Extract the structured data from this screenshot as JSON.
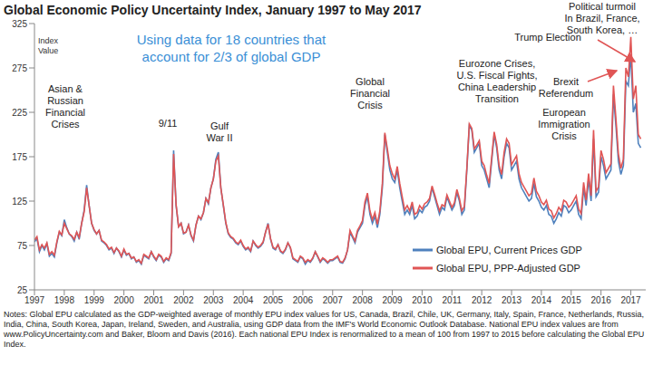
{
  "chart_data": {
    "type": "line",
    "title": "Global Economic Policy Uncertainty Index, January 1997 to May 2017",
    "subtitle": [
      "Using data for 18 countries that",
      "account for 2/3 of global GDP"
    ],
    "ylabel": "Index Value",
    "annotations": [
      [
        "Asian &",
        "Russian",
        "Financial",
        "Crises"
      ],
      [
        "9/11"
      ],
      [
        "Gulf",
        "War II"
      ],
      [
        "Global",
        "Financial",
        "Crisis"
      ],
      [
        "Eurozone Crises,",
        "U.S. Fiscal Fights,",
        "China Leadership",
        "Transition"
      ],
      [
        "European",
        "Immigration",
        "Crisis"
      ],
      [
        "Brexit",
        "Referendum"
      ],
      [
        "Trump Election"
      ],
      [
        "Political turmoil",
        "In Brazil, France,",
        "South Korea, …"
      ]
    ],
    "notes": "Notes: Global EPU calculated as the GDP-weighted average of monthly EPU index values for US, Canada, Brazil, Chile, UK, Germany, Italy, Spain, France, Netherlands, Russia, India, China, South Korea, Japan, Ireland, Sweden, and Australia, using GDP data from the IMF's World Economic Outlook Database. National EPU index values are from www.PolicyUncertainty.com and Baker, Bloom and Davis (2016). Each national EPU Index is renormalized to a mean of 100 from 1997 to 2015 before calculating the Global EPU Index.",
    "x": [
      1997,
      1997.083,
      1997.167,
      1997.25,
      1997.333,
      1997.417,
      1997.5,
      1997.583,
      1997.667,
      1997.75,
      1997.833,
      1997.917,
      1998,
      1998.083,
      1998.167,
      1998.25,
      1998.333,
      1998.417,
      1998.5,
      1998.583,
      1998.667,
      1998.75,
      1998.833,
      1998.917,
      1999,
      1999.083,
      1999.167,
      1999.25,
      1999.333,
      1999.417,
      1999.5,
      1999.583,
      1999.667,
      1999.75,
      1999.833,
      1999.917,
      2000,
      2000.083,
      2000.167,
      2000.25,
      2000.333,
      2000.417,
      2000.5,
      2000.583,
      2000.667,
      2000.75,
      2000.833,
      2000.917,
      2001,
      2001.083,
      2001.167,
      2001.25,
      2001.333,
      2001.417,
      2001.5,
      2001.583,
      2001.667,
      2001.75,
      2001.833,
      2001.917,
      2002,
      2002.083,
      2002.167,
      2002.25,
      2002.333,
      2002.417,
      2002.5,
      2002.583,
      2002.667,
      2002.75,
      2002.833,
      2002.917,
      2003,
      2003.083,
      2003.167,
      2003.25,
      2003.333,
      2003.417,
      2003.5,
      2003.583,
      2003.667,
      2003.75,
      2003.833,
      2003.917,
      2004,
      2004.083,
      2004.167,
      2004.25,
      2004.333,
      2004.417,
      2004.5,
      2004.583,
      2004.667,
      2004.75,
      2004.833,
      2004.917,
      2005,
      2005.083,
      2005.167,
      2005.25,
      2005.333,
      2005.417,
      2005.5,
      2005.583,
      2005.667,
      2005.75,
      2005.833,
      2005.917,
      2006,
      2006.083,
      2006.167,
      2006.25,
      2006.333,
      2006.417,
      2006.5,
      2006.583,
      2006.667,
      2006.75,
      2006.833,
      2006.917,
      2007,
      2007.083,
      2007.167,
      2007.25,
      2007.333,
      2007.417,
      2007.5,
      2007.583,
      2007.667,
      2007.75,
      2007.833,
      2007.917,
      2008,
      2008.083,
      2008.167,
      2008.25,
      2008.333,
      2008.417,
      2008.5,
      2008.583,
      2008.667,
      2008.75,
      2008.833,
      2008.917,
      2009,
      2009.083,
      2009.167,
      2009.25,
      2009.333,
      2009.417,
      2009.5,
      2009.583,
      2009.667,
      2009.75,
      2009.833,
      2009.917,
      2010,
      2010.083,
      2010.167,
      2010.25,
      2010.333,
      2010.417,
      2010.5,
      2010.583,
      2010.667,
      2010.75,
      2010.833,
      2010.917,
      2011,
      2011.083,
      2011.167,
      2011.25,
      2011.333,
      2011.417,
      2011.5,
      2011.583,
      2011.667,
      2011.75,
      2011.833,
      2011.917,
      2012,
      2012.083,
      2012.167,
      2012.25,
      2012.333,
      2012.417,
      2012.5,
      2012.583,
      2012.667,
      2012.75,
      2012.833,
      2012.917,
      2013,
      2013.083,
      2013.167,
      2013.25,
      2013.333,
      2013.417,
      2013.5,
      2013.583,
      2013.667,
      2013.75,
      2013.833,
      2013.917,
      2014,
      2014.083,
      2014.167,
      2014.25,
      2014.333,
      2014.417,
      2014.5,
      2014.583,
      2014.667,
      2014.75,
      2014.833,
      2014.917,
      2015,
      2015.083,
      2015.167,
      2015.25,
      2015.333,
      2015.417,
      2015.5,
      2015.583,
      2015.667,
      2015.75,
      2015.833,
      2015.917,
      2016,
      2016.083,
      2016.167,
      2016.25,
      2016.333,
      2016.417,
      2016.5,
      2016.583,
      2016.667,
      2016.75,
      2016.833,
      2016.917,
      2017,
      2017.083,
      2017.167,
      2017.25,
      2017.333
    ],
    "series": [
      {
        "name": "Global EPU, Current Prices GDP",
        "color": "#4f81bd",
        "values": [
          79,
          83,
          68,
          75,
          70,
          77,
          63,
          66,
          62,
          78,
          90,
          86,
          104,
          95,
          88,
          85,
          80,
          90,
          82,
          100,
          115,
          143,
          120,
          100,
          92,
          88,
          92,
          80,
          78,
          75,
          70,
          72,
          66,
          72,
          68,
          62,
          70,
          64,
          66,
          60,
          62,
          56,
          58,
          54,
          64,
          62,
          60,
          68,
          62,
          58,
          64,
          62,
          56,
          60,
          58,
          66,
          182,
          120,
          96,
          100,
          88,
          90,
          98,
          86,
          80,
          98,
          108,
          104,
          112,
          128,
          122,
          140,
          150,
          172,
          180,
          140,
          120,
          100,
          88,
          84,
          82,
          78,
          76,
          80,
          74,
          70,
          72,
          68,
          80,
          75,
          72,
          74,
          78,
          90,
          100,
          82,
          72,
          70,
          76,
          68,
          66,
          70,
          78,
          72,
          60,
          58,
          56,
          62,
          60,
          54,
          58,
          56,
          60,
          68,
          62,
          56,
          60,
          58,
          55,
          58,
          58,
          60,
          62,
          56,
          55,
          60,
          70,
          90,
          84,
          78,
          90,
          95,
          100,
          120,
          130,
          110,
          100,
          108,
          95,
          110,
          140,
          200,
          180,
          160,
          150,
          146,
          160,
          140,
          125,
          110,
          115,
          110,
          120,
          105,
          108,
          115,
          112,
          118,
          120,
          125,
          140,
          130,
          120,
          110,
          118,
          115,
          130,
          122,
          115,
          120,
          135,
          125,
          110,
          115,
          160,
          210,
          205,
          180,
          185,
          190,
          165,
          160,
          150,
          140,
          170,
          200,
          185,
          160,
          150,
          175,
          190,
          185,
          160,
          165,
          170,
          150,
          140,
          135,
          130,
          125,
          128,
          145,
          130,
          125,
          118,
          115,
          120,
          110,
          108,
          100,
          105,
          112,
          108,
          120,
          118,
          112,
          115,
          120,
          125,
          110,
          105,
          140,
          120,
          150,
          125,
          195,
          130,
          135,
          175,
          165,
          150,
          155,
          160,
          245,
          210,
          170,
          155,
          165,
          260,
          255,
          290,
          225,
          235,
          190,
          185
        ]
      },
      {
        "name": "Global EPU, PPP-Adjusted GDP",
        "color": "#e05555",
        "values": [
          81,
          85,
          70,
          76,
          72,
          78,
          65,
          68,
          64,
          79,
          91,
          87,
          100,
          94,
          88,
          86,
          82,
          90,
          84,
          100,
          113,
          140,
          120,
          100,
          93,
          88,
          92,
          81,
          79,
          76,
          71,
          73,
          67,
          72,
          69,
          63,
          71,
          65,
          66,
          61,
          62,
          57,
          59,
          55,
          65,
          63,
          61,
          68,
          63,
          59,
          65,
          63,
          57,
          61,
          59,
          67,
          178,
          121,
          96,
          100,
          89,
          90,
          98,
          87,
          81,
          98,
          108,
          105,
          112,
          128,
          123,
          140,
          150,
          170,
          176,
          140,
          121,
          101,
          89,
          85,
          83,
          79,
          77,
          81,
          75,
          71,
          73,
          69,
          80,
          76,
          73,
          75,
          79,
          90,
          99,
          83,
          73,
          71,
          76,
          69,
          67,
          71,
          78,
          73,
          61,
          59,
          57,
          63,
          61,
          56,
          59,
          57,
          61,
          68,
          63,
          57,
          61,
          59,
          56,
          59,
          59,
          61,
          63,
          57,
          56,
          61,
          70,
          92,
          86,
          80,
          92,
          97,
          103,
          124,
          134,
          114,
          104,
          112,
          99,
          114,
          145,
          202,
          184,
          165,
          156,
          150,
          164,
          145,
          130,
          115,
          120,
          114,
          124,
          110,
          112,
          120,
          116,
          122,
          124,
          128,
          142,
          133,
          123,
          114,
          121,
          119,
          132,
          125,
          118,
          123,
          138,
          128,
          114,
          119,
          162,
          212,
          207,
          184,
          188,
          193,
          170,
          165,
          154,
          145,
          174,
          203,
          189,
          165,
          155,
          180,
          195,
          190,
          166,
          171,
          176,
          156,
          146,
          141,
          136,
          131,
          134,
          151,
          136,
          131,
          124,
          121,
          126,
          116,
          114,
          106,
          111,
          118,
          114,
          126,
          124,
          118,
          121,
          126,
          131,
          116,
          111,
          146,
          126,
          156,
          131,
          205,
          136,
          141,
          182,
          172,
          157,
          162,
          167,
          255,
          218,
          178,
          162,
          172,
          275,
          265,
          310,
          240,
          255,
          200,
          195
        ]
      }
    ],
    "xlim": [
      1997,
      2017.5
    ],
    "ylim": [
      25,
      325
    ],
    "xticks": [
      1997,
      1998,
      1999,
      2000,
      2001,
      2002,
      2003,
      2004,
      2005,
      2006,
      2007,
      2008,
      2009,
      2010,
      2011,
      2012,
      2013,
      2014,
      2015,
      2016,
      2017
    ],
    "yticks": [
      25,
      75,
      125,
      175,
      225,
      275,
      325
    ],
    "grid": false,
    "legend": "lower right"
  }
}
